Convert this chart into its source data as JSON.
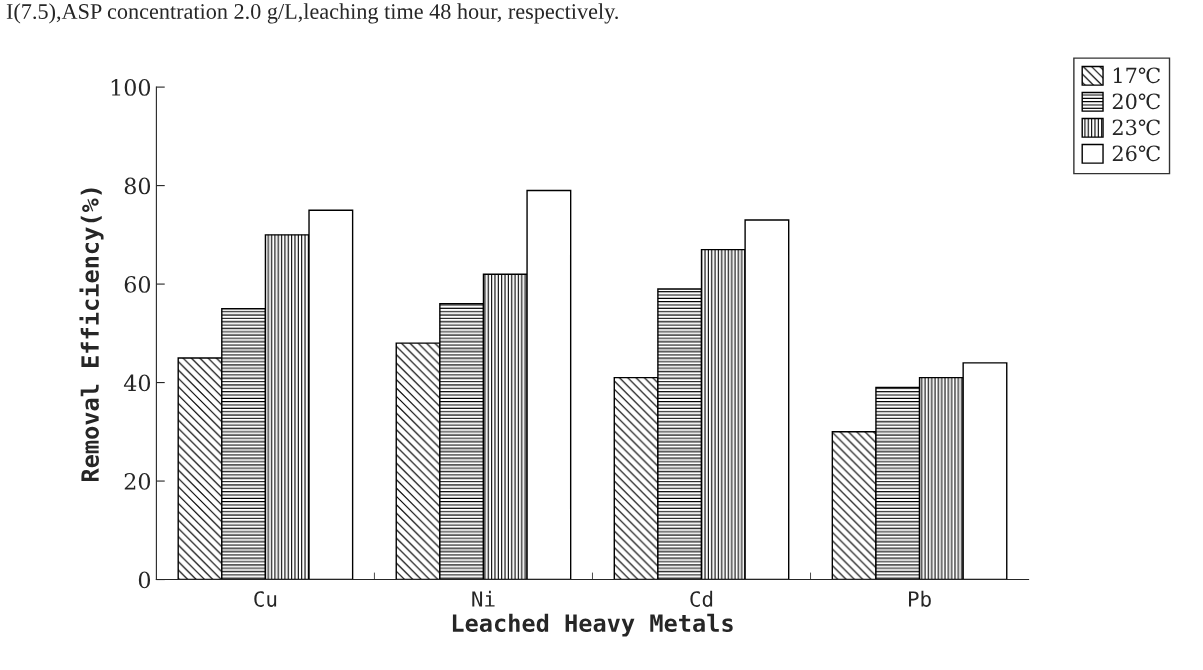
{
  "chart_data": {
    "type": "bar",
    "xlabel": "Leached Heavy Metals",
    "ylabel": "Removal Efficiency(%)",
    "annotations": [
      "I(7.5),ASP concentration 2.0 g/L,leaching time 48 hour, respectively."
    ],
    "categories": [
      "Cu",
      "Ni",
      "Cd",
      "Pb"
    ],
    "series": [
      {
        "name": "17℃",
        "color": "#000000",
        "values": [
          45,
          48,
          41,
          30
        ]
      },
      {
        "name": "20℃",
        "color": "#000000",
        "values": [
          55,
          56,
          59,
          39
        ]
      },
      {
        "name": "23℃",
        "color": "#000000",
        "values": [
          70,
          62,
          67,
          41
        ]
      },
      {
        "name": "26℃",
        "color": "#ffffff",
        "values": [
          75,
          79,
          73,
          44
        ]
      }
    ],
    "ylim": [
      0,
      100
    ],
    "yticks": [
      0,
      20,
      40,
      60,
      80,
      100
    ],
    "grid": false,
    "legend": "top right"
  }
}
